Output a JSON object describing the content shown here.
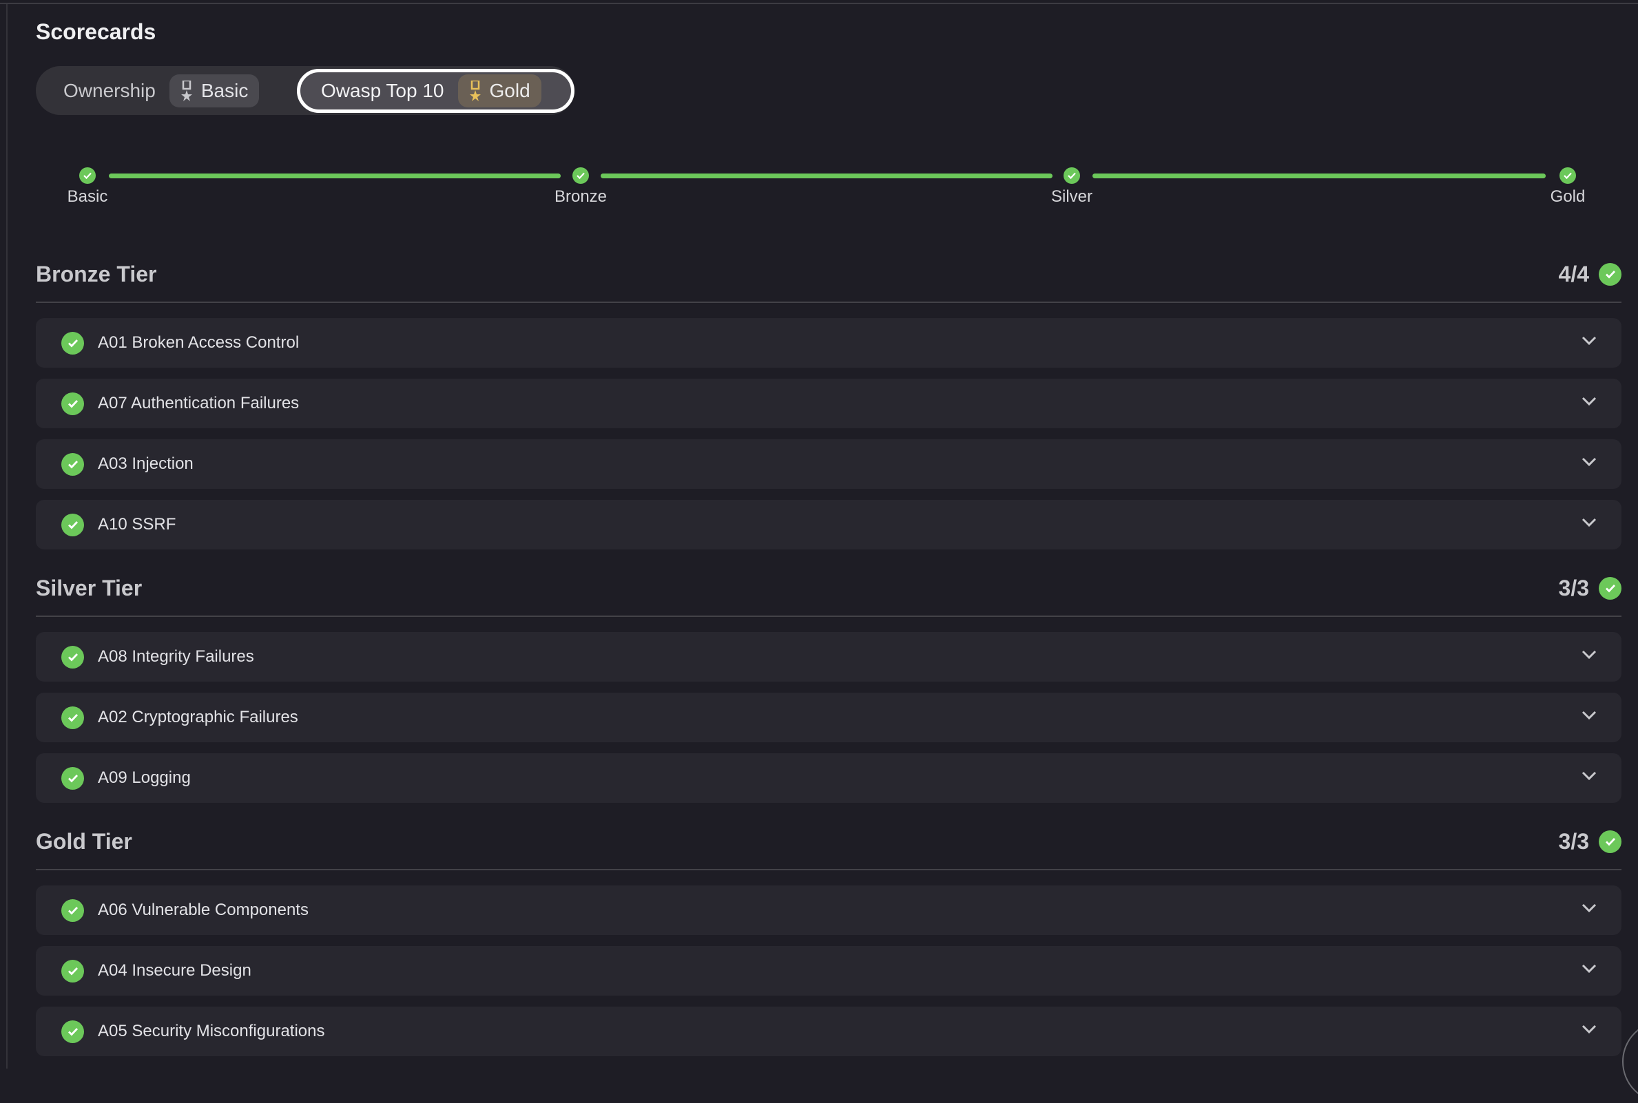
{
  "title": "Scorecards",
  "scorecards": [
    {
      "name": "Ownership",
      "level": "Basic",
      "selected": false
    },
    {
      "name": "Owasp Top 10",
      "level": "Gold",
      "selected": true
    }
  ],
  "progress": {
    "levels": [
      "Basic",
      "Bronze",
      "Silver",
      "Gold"
    ],
    "completed": 4
  },
  "tiers": [
    {
      "name": "Bronze Tier",
      "count": "4/4",
      "items": [
        "A01 Broken Access Control",
        "A07 Authentication Failures",
        "A03 Injection",
        "A10 SSRF"
      ]
    },
    {
      "name": "Silver Tier",
      "count": "3/3",
      "items": [
        "A08 Integrity Failures",
        "A02 Cryptographic Failures",
        "A09 Logging"
      ]
    },
    {
      "name": "Gold Tier",
      "count": "3/3",
      "items": [
        "A06 Vulnerable Components",
        "A04 Insecure Design",
        "A05 Security Misconfigurations"
      ]
    }
  ],
  "colors": {
    "success": "#6cc85a",
    "gold": "#e8c15a",
    "background": "#1e1d25",
    "row": "#28272f"
  },
  "icons": {
    "check": "check-circle-icon",
    "medal": "medal-icon",
    "expand": "chevron-down-icon"
  }
}
